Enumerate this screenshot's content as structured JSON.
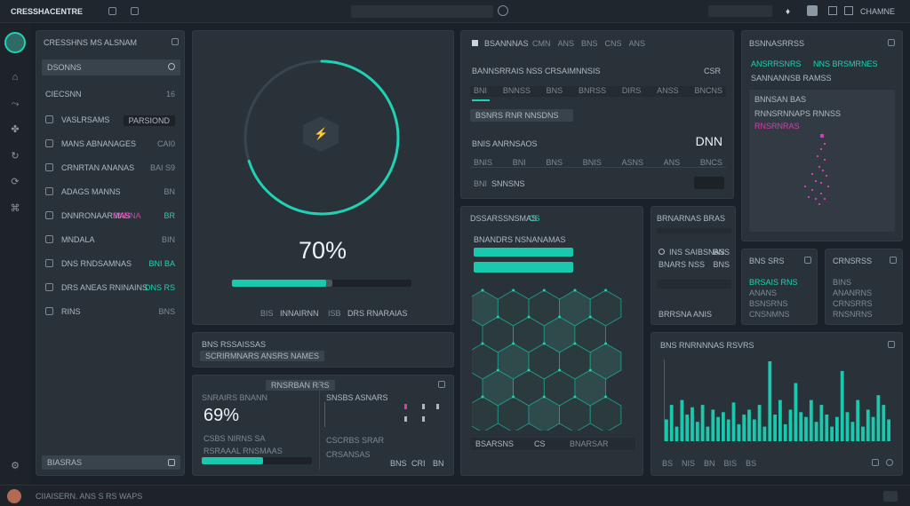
{
  "app": {
    "title": "CRESSHACENTRE",
    "top_right_label": "CHAMNE",
    "search_placeholder": "",
    "status_text": "CIIAISERN. ANS S RS WAPS"
  },
  "colors": {
    "accent": "#1fd1b5",
    "secondary": "#d43fae",
    "panel": "#2a3239",
    "background": "#1b2128"
  },
  "sidebar": {
    "header": "CRESSHNS MS ALSNAM",
    "search_label": "DSONNS",
    "section_label": "CIECSNN",
    "section_count": "16",
    "items": [
      {
        "label": "VASLRSAMS",
        "value": "PARSIOND"
      },
      {
        "label": "MANS ABNANAGES",
        "value": "CAI0"
      },
      {
        "label": "CRNRTAN ANANAS",
        "value": "BAI S9"
      },
      {
        "label": "ADAGS MANNS",
        "value": "BN"
      },
      {
        "label": "DNNRONAARMAS",
        "value": "BR",
        "badge": "BNRNA"
      },
      {
        "label": "MNDALA",
        "value": "BIN"
      },
      {
        "label": "DNS RNDSAMNAS",
        "value": "BNI BA"
      },
      {
        "label": "DRS ANEAS RNINAINS",
        "value": "DNS RS"
      },
      {
        "label": "RINS",
        "value": "BNS"
      }
    ],
    "footer": "BIASRAS"
  },
  "gauge": {
    "percent_label": "70%",
    "progress": 0.7,
    "secondary_progress": 0.82,
    "caption_left": "INNAIRNN",
    "caption_right": "DRS RNARAIAS",
    "caption_a": "BIS",
    "caption_b": "ISB"
  },
  "sub_panel": {
    "title": "BNS RSSAISSAS",
    "button_label": "SCRIRMNARS ANSRS NAMES"
  },
  "stat_panel": {
    "header": "SNRAIRS BNANN",
    "tab": "RNSRBAN RRS",
    "big_value": "69%",
    "row1": "CSBS NIRNS SA",
    "row2": "RSRAAAL RNSMAAS",
    "right_label": "SNSBS ASNARS",
    "right_row1": "CSCRBS SRAR",
    "right_row2": "CRSANSAS",
    "right_vals": [
      "BNS",
      "CRI",
      "BN"
    ]
  },
  "table_panel": {
    "title": "BSANNNAS",
    "tabs": [
      "CMN",
      "ANS",
      "BNS",
      "CNS",
      "ANS"
    ],
    "headline": "BANNSRRAIS NSS CRSAIMNNSIS",
    "headline_value": "CSR",
    "columns": [
      "BNI",
      "BNNSS",
      "BNS",
      "BNRSS",
      "DIRS",
      "ANSS",
      "BNCNS"
    ],
    "highlight_label": "BSNRS RNR NNSDNS",
    "metric_label": "BNIS ANRNSAOS",
    "metric_value": "DNN",
    "footer_columns": [
      "BNIS",
      "BNI",
      "BNS",
      "BNIS",
      "ASNS",
      "ANS",
      "BNCS"
    ],
    "footer_label": "SNNSNS",
    "footer_prefix": "BNI"
  },
  "hex_panel": {
    "title": "DSSARSSNSMAS",
    "title_badge": "CS",
    "subtitle": "BNANDRS NSNANAMAS",
    "bar1": 0.86,
    "bar2": 0.66,
    "footer_left": "BSARSNS",
    "footer_mid": "CS",
    "footer_right": "BNARSAR"
  },
  "side_card": {
    "title": "BRNARNAS BRAS",
    "rows": [
      {
        "label": "INS SAIBSNAS",
        "value": "BNS"
      },
      {
        "label": "BNARS NSS",
        "value": "BNS"
      }
    ],
    "status": "BRRSNA ANIS"
  },
  "scatter_panel": {
    "title": "BSNNASRRSS",
    "legend_a": "ANSRRSNRS",
    "legend_b": "NNS BRSMRNES",
    "row1": "SANNANNSB RAMSS",
    "row2": "BNNSAN BAS",
    "row3": "RNNSRNNAPS RNNSS",
    "row4": "RNSRNRAS"
  },
  "mini_a": {
    "title": "BNS SRS",
    "items": [
      "BRSAIS RNS",
      "ANANS",
      "BSNSRNS",
      "CNSNMNS"
    ]
  },
  "mini_b": {
    "title": "CRNSRSS",
    "items": [
      "BINS",
      "ANANRNS",
      "CRNSRRS",
      "RNSNRNS"
    ]
  },
  "bars_panel": {
    "title": "BNS RNRNNNAS RSVRS",
    "axis_labels": [
      "BS",
      "NIS",
      "BN",
      "BIS",
      "BS"
    ]
  },
  "chart_data": {
    "type": "bar",
    "values": [
      18,
      30,
      12,
      34,
      22,
      28,
      16,
      30,
      12,
      26,
      20,
      24,
      18,
      32,
      14,
      22,
      26,
      18,
      30,
      12,
      66,
      22,
      34,
      14,
      26,
      48,
      24,
      20,
      34,
      16,
      30,
      22,
      12,
      20,
      58,
      24,
      16,
      34,
      12,
      26,
      20,
      38,
      30,
      18
    ],
    "title": "",
    "xlabel": "",
    "ylabel": ""
  }
}
